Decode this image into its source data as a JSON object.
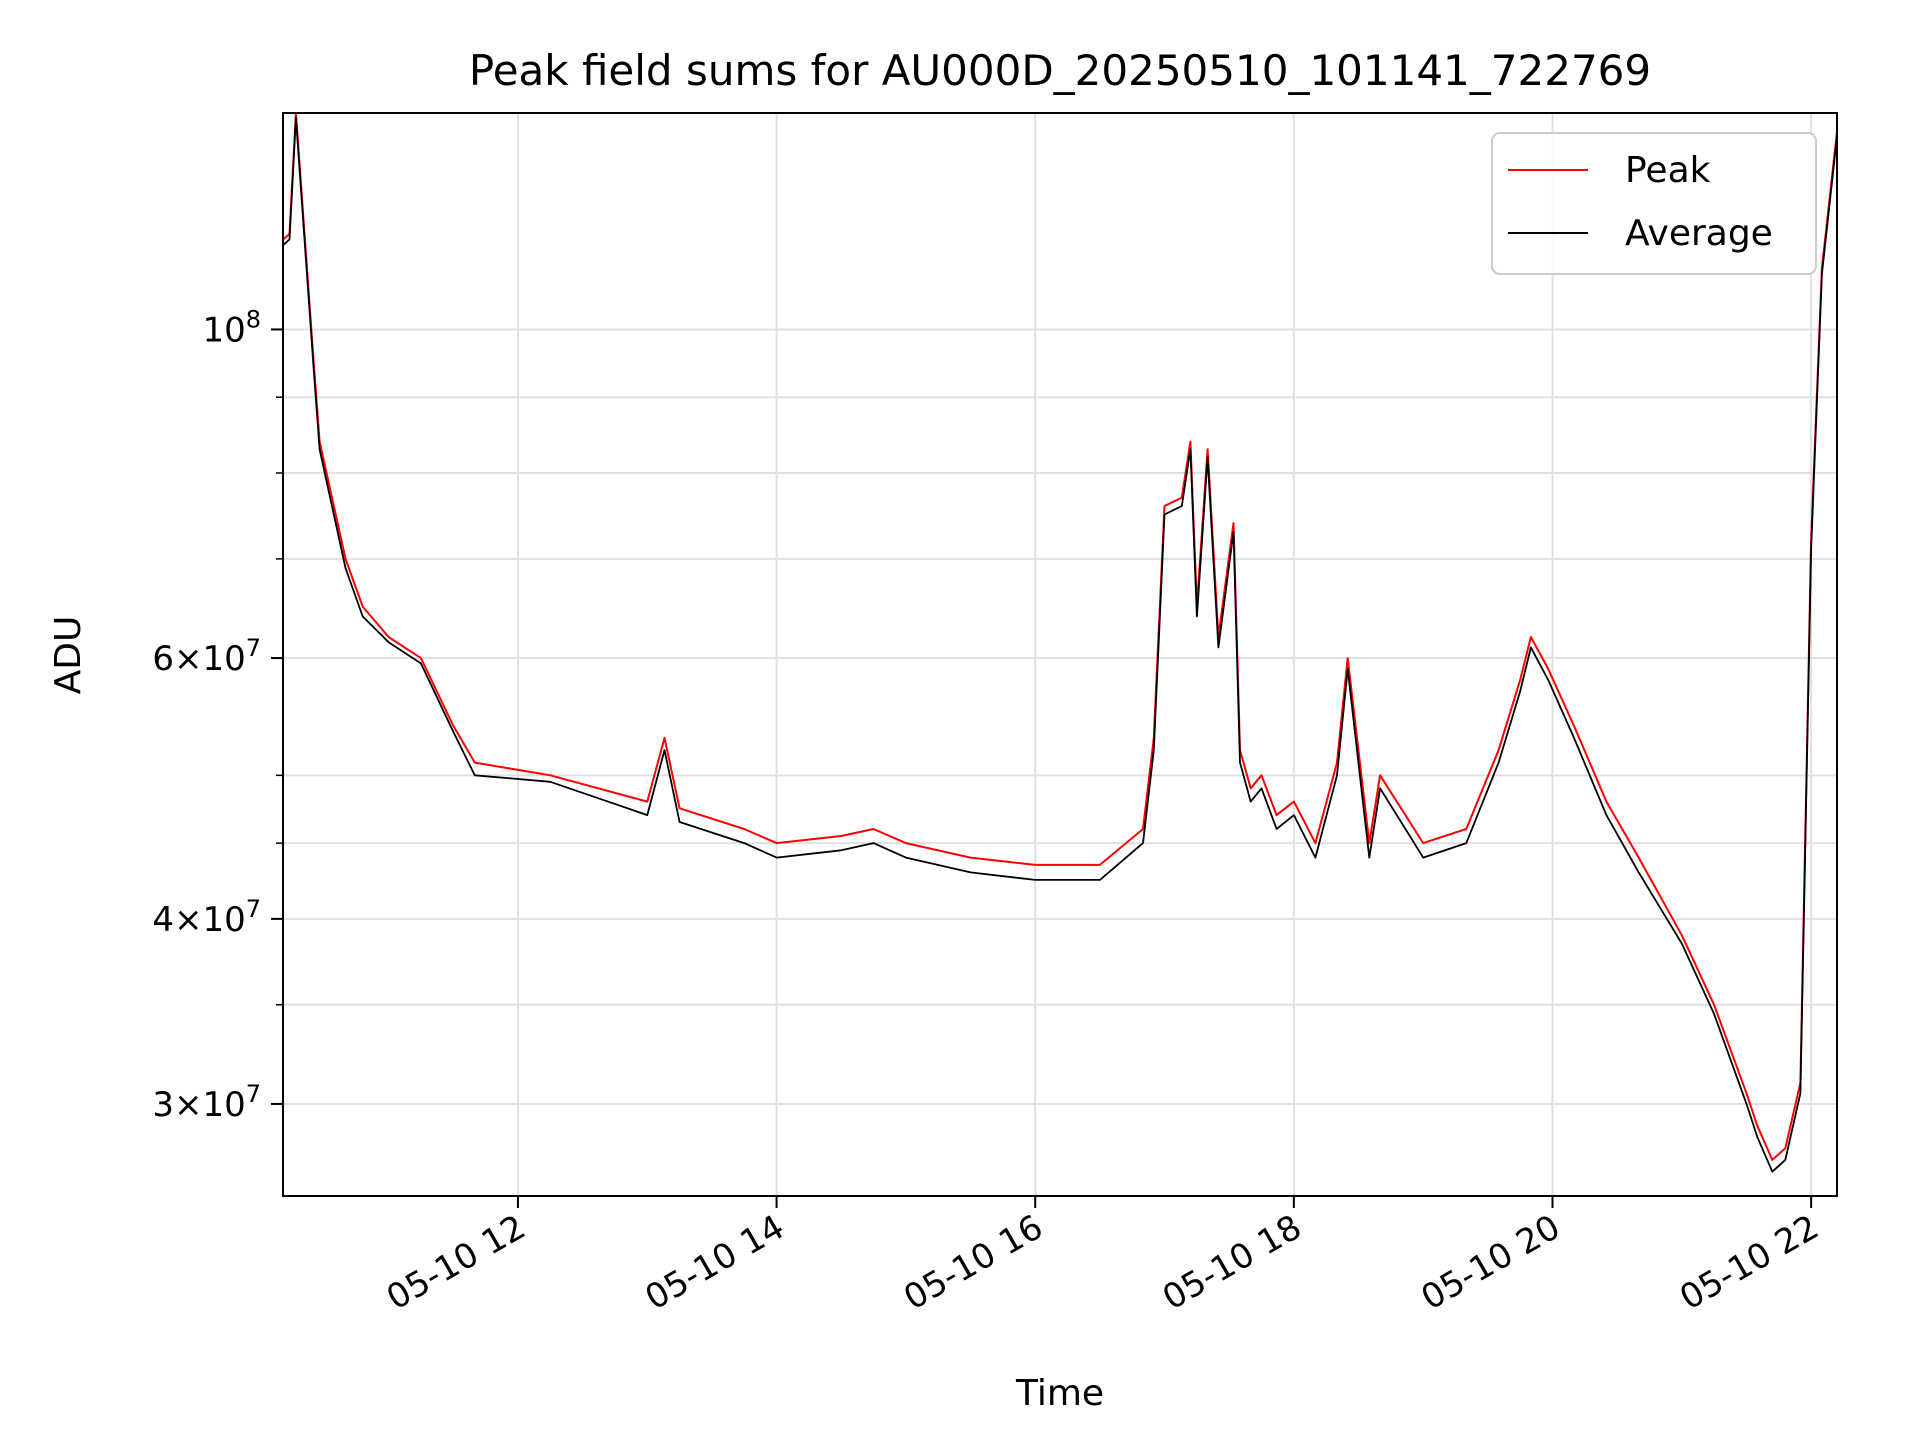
{
  "chart_data": {
    "type": "line",
    "title": "Peak field sums for AU000D_20250510_101141_722769",
    "xlabel": "Time",
    "ylabel": "ADU",
    "y_scale": "log",
    "ylim": [
      26000000,
      140000000
    ],
    "xlim": [
      "05-10 10:11",
      "05-10 22:12"
    ],
    "grid": true,
    "legend_position": "top-right",
    "x_ticks": [
      "05-10 12",
      "05-10 14",
      "05-10 16",
      "05-10 18",
      "05-10 20",
      "05-10 22"
    ],
    "y_ticks": [
      {
        "value": 100000000,
        "mantissa": "",
        "base": "10",
        "exp": "8"
      },
      {
        "value": 60000000,
        "mantissa": "6×",
        "base": "10",
        "exp": "7"
      },
      {
        "value": 40000000,
        "mantissa": "4×",
        "base": "10",
        "exp": "7"
      },
      {
        "value": 30000000,
        "mantissa": "3×",
        "base": "10",
        "exp": "7"
      }
    ],
    "series": [
      {
        "name": "Peak",
        "color": "#ff0000"
      },
      {
        "name": "Average",
        "color": "#000000"
      }
    ],
    "x": [
      "05-10 10:11",
      "05-10 10:14",
      "05-10 10:17",
      "05-10 10:25",
      "05-10 10:28",
      "05-10 10:40",
      "05-10 10:48",
      "05-10 11:00",
      "05-10 11:15",
      "05-10 11:30",
      "05-10 11:40",
      "05-10 12:15",
      "05-10 13:00",
      "05-10 13:08",
      "05-10 13:15",
      "05-10 13:45",
      "05-10 14:00",
      "05-10 14:30",
      "05-10 14:45",
      "05-10 15:00",
      "05-10 15:30",
      "05-10 16:00",
      "05-10 16:30",
      "05-10 16:50",
      "05-10 16:55",
      "05-10 17:00",
      "05-10 17:08",
      "05-10 17:12",
      "05-10 17:15",
      "05-10 17:20",
      "05-10 17:25",
      "05-10 17:32",
      "05-10 17:35",
      "05-10 17:40",
      "05-10 17:45",
      "05-10 17:52",
      "05-10 18:00",
      "05-10 18:10",
      "05-10 18:20",
      "05-10 18:25",
      "05-10 18:35",
      "05-10 18:40",
      "05-10 19:00",
      "05-10 19:20",
      "05-10 19:35",
      "05-10 19:45",
      "05-10 19:50",
      "05-10 19:58",
      "05-10 20:10",
      "05-10 20:25",
      "05-10 20:40",
      "05-10 21:00",
      "05-10 21:15",
      "05-10 21:30",
      "05-10 21:35",
      "05-10 21:42",
      "05-10 21:48",
      "05-10 21:55",
      "05-10 22:00",
      "05-10 22:05",
      "05-10 22:12"
    ],
    "peak": [
      115000000,
      116000000,
      140000000,
      96000000,
      84000000,
      70000000,
      65000000,
      62000000,
      60000000,
      54000000,
      51000000,
      50000000,
      48000000,
      53000000,
      47500000,
      46000000,
      45000000,
      45500000,
      46000000,
      45000000,
      44000000,
      43500000,
      43500000,
      46000000,
      53000000,
      76000000,
      77000000,
      84000000,
      65000000,
      83000000,
      62000000,
      74000000,
      52000000,
      49000000,
      50000000,
      47000000,
      48000000,
      45000000,
      51000000,
      60000000,
      45000000,
      50000000,
      45000000,
      46000000,
      52000000,
      58000000,
      62000000,
      59000000,
      54000000,
      48000000,
      44000000,
      39000000,
      35000000,
      30500000,
      29000000,
      27500000,
      28000000,
      31000000,
      72000000,
      110000000,
      136000000
    ],
    "average": [
      114000000,
      115000000,
      139000000,
      95000000,
      83000000,
      69000000,
      64000000,
      61500000,
      59500000,
      53500000,
      50000000,
      49500000,
      47000000,
      52000000,
      46500000,
      45000000,
      44000000,
      44500000,
      45000000,
      44000000,
      43000000,
      42500000,
      42500000,
      45000000,
      52000000,
      75000000,
      76000000,
      83000000,
      64000000,
      82000000,
      61000000,
      73000000,
      51000000,
      48000000,
      49000000,
      46000000,
      47000000,
      44000000,
      50000000,
      59000000,
      44000000,
      49000000,
      44000000,
      45000000,
      51000000,
      57000000,
      61000000,
      58000000,
      53000000,
      47000000,
      43000000,
      38500000,
      34500000,
      30000000,
      28500000,
      27000000,
      27500000,
      30500000,
      71000000,
      109000000,
      135000000
    ]
  }
}
